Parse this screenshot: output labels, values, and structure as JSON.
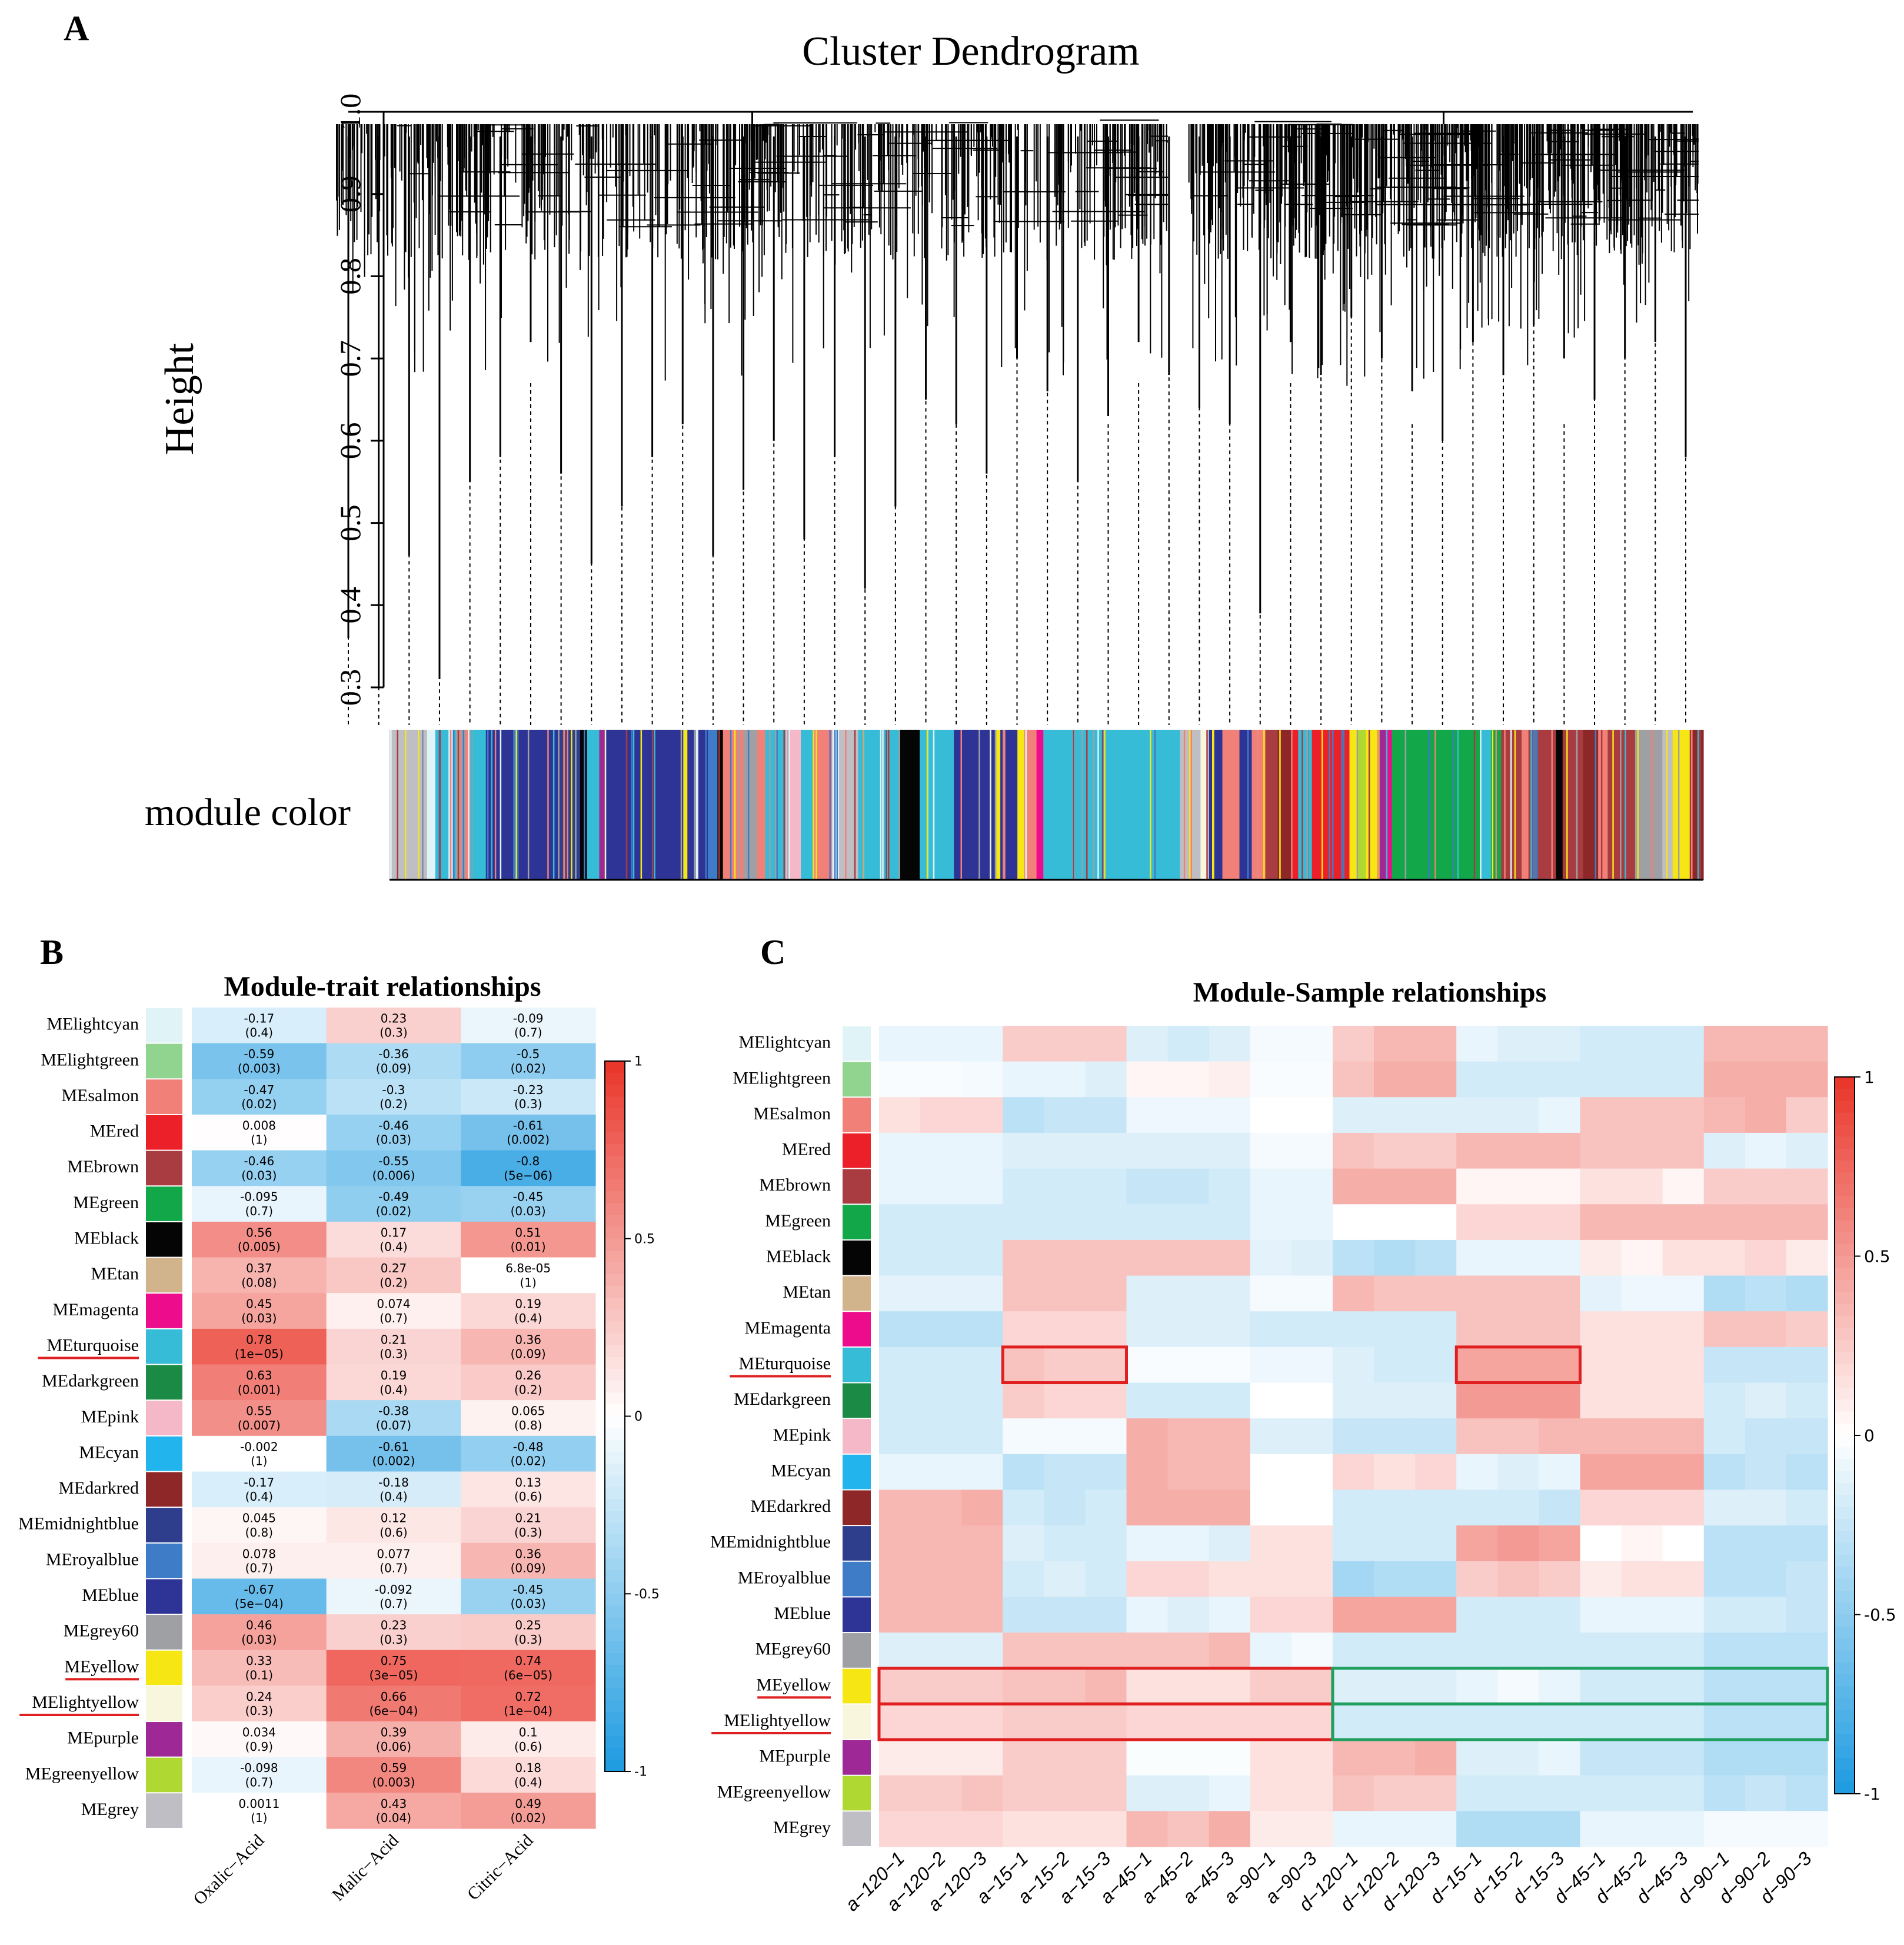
{
  "colors": {
    "lightcyan": "#E0F4F8",
    "lightgreen": "#90D490",
    "salmon": "#F08078",
    "red": "#EC2029",
    "brown": "#A83C40",
    "green": "#12A84A",
    "black": "#050505",
    "tan": "#D2B48C",
    "magenta": "#EC0C8C",
    "turquoise": "#37BCD8",
    "darkgreen": "#1A8A44",
    "pink": "#F4B8C8",
    "cyan": "#22B4EC",
    "darkred": "#8E2828",
    "midnightblue": "#2E3D8C",
    "royalblue": "#3E7CC8",
    "blue": "#2E3496",
    "grey60": "#9EA0A4",
    "yellow": "#F5E614",
    "lightyellow": "#F8F6DC",
    "purple": "#9E2896",
    "greenyellow": "#B0D832",
    "grey": "#BEBEC4",
    "highlight_red": "#E02020",
    "highlight_green": "#20A060",
    "underline": "#E02020"
  },
  "panels": {
    "a": {
      "letter": "A"
    },
    "b": {
      "letter": "B"
    },
    "c": {
      "letter": "C"
    }
  },
  "chart_data": [
    {
      "type": "dendrogram",
      "title": "Cluster Dendrogram",
      "ylabel": "Height",
      "ylim": [
        0.3,
        1.0
      ],
      "yticks": [
        "0.3",
        "0.4",
        "0.5",
        "0.6",
        "0.7",
        "0.8",
        "0.9",
        "1.0"
      ],
      "ytick_values": [
        0.3,
        0.4,
        0.5,
        0.6,
        0.7,
        0.8,
        0.9,
        1.0
      ],
      "colorbar_label": "module color",
      "leaf_min_heights": [
        0.36,
        0.3,
        0.46,
        0.31,
        0.55,
        0.58,
        0.72,
        0.56,
        0.45,
        0.52,
        0.58,
        0.62,
        0.46,
        0.54,
        0.6,
        0.48,
        0.58,
        0.42,
        0.52,
        0.65,
        0.62,
        0.56,
        0.7,
        0.66,
        0.55,
        0.63,
        0.72,
        0.68,
        0.64,
        0.62,
        0.39,
        0.72,
        0.68,
        0.75,
        0.7,
        0.66,
        0.6,
        0.72,
        0.68,
        0.74,
        0.7,
        0.65,
        0.7,
        0.72,
        0.58
      ]
    },
    {
      "type": "heatmap",
      "title": "Module-trait relationships",
      "columns": [
        "Oxalic−Acid",
        "Malic−Acid",
        "Citric−Acid"
      ],
      "rows": [
        "MElightcyan",
        "MElightgreen",
        "MEsalmon",
        "MEred",
        "MEbrown",
        "MEgreen",
        "MEblack",
        "MEtan",
        "MEmagenta",
        "MEturquoise",
        "MEdarkgreen",
        "MEpink",
        "MEcyan",
        "MEdarkred",
        "MEmidnightblue",
        "MEroyalblue",
        "MEblue",
        "MEgrey60",
        "MEyellow",
        "MElightyellow",
        "MEpurple",
        "MEgreenyellow",
        "MEgrey"
      ],
      "values": [
        [
          -0.17,
          0.23,
          -0.09
        ],
        [
          -0.59,
          -0.36,
          -0.5
        ],
        [
          -0.47,
          -0.3,
          -0.23
        ],
        [
          0.008,
          -0.46,
          -0.61
        ],
        [
          -0.46,
          -0.55,
          -0.8
        ],
        [
          -0.095,
          -0.49,
          -0.45
        ],
        [
          0.56,
          0.17,
          0.51
        ],
        [
          0.37,
          0.27,
          6.8e-05
        ],
        [
          0.45,
          0.074,
          0.19
        ],
        [
          0.78,
          0.21,
          0.36
        ],
        [
          0.63,
          0.19,
          0.26
        ],
        [
          0.55,
          -0.38,
          0.065
        ],
        [
          -0.002,
          -0.61,
          -0.48
        ],
        [
          -0.17,
          -0.18,
          0.13
        ],
        [
          0.045,
          0.12,
          0.21
        ],
        [
          0.078,
          0.077,
          0.36
        ],
        [
          -0.67,
          -0.092,
          -0.45
        ],
        [
          0.46,
          0.23,
          0.25
        ],
        [
          0.33,
          0.75,
          0.74
        ],
        [
          0.24,
          0.66,
          0.72
        ],
        [
          0.034,
          0.39,
          0.1
        ],
        [
          -0.098,
          0.59,
          0.18
        ],
        [
          0.0011,
          0.43,
          0.49
        ]
      ],
      "cell_labels": [
        [
          "-0.17",
          "0.23",
          "-0.09"
        ],
        [
          "-0.59",
          "-0.36",
          "-0.5"
        ],
        [
          "-0.47",
          "-0.3",
          "-0.23"
        ],
        [
          "0.008",
          "-0.46",
          "-0.61"
        ],
        [
          "-0.46",
          "-0.55",
          "-0.8"
        ],
        [
          "-0.095",
          "-0.49",
          "-0.45"
        ],
        [
          "0.56",
          "0.17",
          "0.51"
        ],
        [
          "0.37",
          "0.27",
          "6.8e-05"
        ],
        [
          "0.45",
          "0.074",
          "0.19"
        ],
        [
          "0.78",
          "0.21",
          "0.36"
        ],
        [
          "0.63",
          "0.19",
          "0.26"
        ],
        [
          "0.55",
          "-0.38",
          "0.065"
        ],
        [
          "-0.002",
          "-0.61",
          "-0.48"
        ],
        [
          "-0.17",
          "-0.18",
          "0.13"
        ],
        [
          "0.045",
          "0.12",
          "0.21"
        ],
        [
          "0.078",
          "0.077",
          "0.36"
        ],
        [
          "-0.67",
          "-0.092",
          "-0.45"
        ],
        [
          "0.46",
          "0.23",
          "0.25"
        ],
        [
          "0.33",
          "0.75",
          "0.74"
        ],
        [
          "0.24",
          "0.66",
          "0.72"
        ],
        [
          "0.034",
          "0.39",
          "0.1"
        ],
        [
          "-0.098",
          "0.59",
          "0.18"
        ],
        [
          "0.0011",
          "0.43",
          "0.49"
        ]
      ],
      "pvalues": [
        [
          "(0.4)",
          "(0.3)",
          "(0.7)"
        ],
        [
          "(0.003)",
          "(0.09)",
          "(0.02)"
        ],
        [
          "(0.02)",
          "(0.2)",
          "(0.3)"
        ],
        [
          "(1)",
          "(0.03)",
          "(0.002)"
        ],
        [
          "(0.03)",
          "(0.006)",
          "(5e−06)"
        ],
        [
          "(0.7)",
          "(0.02)",
          "(0.03)"
        ],
        [
          "(0.005)",
          "(0.4)",
          "(0.01)"
        ],
        [
          "(0.08)",
          "(0.2)",
          "(1)"
        ],
        [
          "(0.03)",
          "(0.7)",
          "(0.4)"
        ],
        [
          "(1e−05)",
          "(0.3)",
          "(0.09)"
        ],
        [
          "(0.001)",
          "(0.4)",
          "(0.2)"
        ],
        [
          "(0.007)",
          "(0.07)",
          "(0.8)"
        ],
        [
          "(1)",
          "(0.002)",
          "(0.02)"
        ],
        [
          "(0.4)",
          "(0.4)",
          "(0.6)"
        ],
        [
          "(0.8)",
          "(0.6)",
          "(0.3)"
        ],
        [
          "(0.7)",
          "(0.7)",
          "(0.09)"
        ],
        [
          "(5e−04)",
          "(0.7)",
          "(0.03)"
        ],
        [
          "(0.03)",
          "(0.3)",
          "(0.3)"
        ],
        [
          "(0.1)",
          "(3e−05)",
          "(6e−05)"
        ],
        [
          "(0.3)",
          "(6e−04)",
          "(1e−04)"
        ],
        [
          "(0.9)",
          "(0.06)",
          "(0.6)"
        ],
        [
          "(0.7)",
          "(0.003)",
          "(0.4)"
        ],
        [
          "(1)",
          "(0.04)",
          "(0.02)"
        ]
      ],
      "colorbar": {
        "range": [
          -1,
          1
        ],
        "ticks": [
          "1",
          "0.5",
          "0",
          "-0.5",
          "-1"
        ]
      },
      "underlined_rows": [
        "MEturquoise",
        "MEyellow",
        "MElightyellow"
      ]
    },
    {
      "type": "heatmap",
      "title": "Module-Sample relationships",
      "columns": [
        "a−120−1",
        "a−120−2",
        "a−120−3",
        "a−15−1",
        "a−15−2",
        "a−15−3",
        "a−45−1",
        "a−45−2",
        "a−45−3",
        "a−90−1",
        "a−90−3",
        "d−120−1",
        "d−120−2",
        "d−120−3",
        "d−15−1",
        "d−15−2",
        "d−15−3",
        "d−45−1",
        "d−45−2",
        "d−45−3",
        "d−90−1",
        "d−90−2",
        "d−90−3"
      ],
      "rows": [
        "MElightcyan",
        "MElightgreen",
        "MEsalmon",
        "MEred",
        "MEbrown",
        "MEgreen",
        "MEblack",
        "MEtan",
        "MEmagenta",
        "MEturquoise",
        "MEdarkgreen",
        "MEpink",
        "MEcyan",
        "MEdarkred",
        "MEmidnightblue",
        "MEroyalblue",
        "MEblue",
        "MEgrey60",
        "MEyellow",
        "MElightyellow",
        "MEpurple",
        "MEgreenyellow",
        "MEgrey"
      ],
      "values": [
        [
          -0.1,
          -0.1,
          -0.1,
          0.25,
          0.25,
          0.25,
          -0.15,
          -0.2,
          -0.15,
          -0.05,
          -0.05,
          0.25,
          0.35,
          0.35,
          -0.1,
          -0.15,
          -0.15,
          -0.2,
          -0.2,
          -0.2,
          0.35,
          0.35,
          0.35
        ],
        [
          -0.03,
          -0.03,
          -0.05,
          -0.1,
          -0.1,
          -0.15,
          0.05,
          0.05,
          0.08,
          -0.03,
          -0.03,
          0.3,
          0.4,
          0.4,
          -0.2,
          -0.2,
          -0.2,
          -0.2,
          -0.2,
          -0.2,
          0.4,
          0.4,
          0.4
        ],
        [
          0.15,
          0.2,
          0.2,
          -0.3,
          -0.25,
          -0.25,
          -0.08,
          -0.08,
          -0.08,
          0.0,
          0.0,
          -0.15,
          -0.15,
          -0.15,
          -0.15,
          -0.15,
          -0.1,
          0.3,
          0.3,
          0.3,
          0.35,
          0.4,
          0.25
        ],
        [
          -0.1,
          -0.1,
          -0.1,
          -0.15,
          -0.15,
          -0.15,
          -0.15,
          -0.15,
          -0.15,
          -0.05,
          -0.05,
          0.3,
          0.25,
          0.25,
          0.35,
          0.35,
          0.35,
          0.3,
          0.3,
          0.3,
          -0.15,
          -0.1,
          -0.15
        ],
        [
          -0.1,
          -0.1,
          -0.1,
          -0.2,
          -0.2,
          -0.2,
          -0.25,
          -0.25,
          -0.2,
          -0.1,
          -0.1,
          0.4,
          0.4,
          0.4,
          0.05,
          0.05,
          0.05,
          0.15,
          0.15,
          0.05,
          0.25,
          0.25,
          0.25
        ],
        [
          -0.2,
          -0.2,
          -0.2,
          -0.2,
          -0.2,
          -0.2,
          -0.2,
          -0.2,
          -0.2,
          -0.1,
          -0.1,
          0.0,
          0.0,
          0.0,
          0.2,
          0.2,
          0.2,
          0.35,
          0.35,
          0.35,
          0.35,
          0.35,
          0.35
        ],
        [
          -0.2,
          -0.2,
          -0.2,
          0.3,
          0.3,
          0.3,
          0.3,
          0.3,
          0.3,
          -0.12,
          -0.15,
          -0.3,
          -0.35,
          -0.3,
          -0.1,
          -0.1,
          -0.1,
          0.1,
          0.05,
          0.15,
          0.15,
          0.2,
          0.1
        ],
        [
          -0.12,
          -0.12,
          -0.12,
          0.3,
          0.3,
          0.3,
          -0.15,
          -0.15,
          -0.15,
          -0.05,
          -0.05,
          0.35,
          0.3,
          0.3,
          0.3,
          0.3,
          0.3,
          -0.12,
          -0.08,
          -0.08,
          -0.35,
          -0.3,
          -0.35
        ],
        [
          -0.3,
          -0.3,
          -0.3,
          0.2,
          0.2,
          0.2,
          -0.15,
          -0.15,
          -0.15,
          -0.2,
          -0.2,
          -0.2,
          -0.2,
          -0.2,
          0.3,
          0.3,
          0.3,
          0.15,
          0.15,
          0.15,
          0.3,
          0.3,
          0.25
        ],
        [
          -0.2,
          -0.2,
          -0.2,
          0.3,
          0.25,
          0.25,
          -0.03,
          -0.03,
          -0.03,
          -0.08,
          -0.08,
          -0.15,
          -0.2,
          -0.2,
          0.45,
          0.45,
          0.45,
          0.15,
          0.15,
          0.15,
          -0.25,
          -0.25,
          -0.25
        ],
        [
          -0.2,
          -0.2,
          -0.2,
          0.25,
          0.2,
          0.2,
          -0.2,
          -0.2,
          -0.2,
          0.0,
          0.0,
          -0.15,
          -0.15,
          -0.15,
          0.5,
          0.5,
          0.5,
          0.15,
          0.15,
          0.15,
          -0.2,
          -0.15,
          -0.2
        ],
        [
          -0.2,
          -0.2,
          -0.2,
          -0.05,
          -0.05,
          -0.05,
          0.4,
          0.35,
          0.35,
          -0.15,
          -0.15,
          -0.25,
          -0.25,
          -0.25,
          0.3,
          0.3,
          0.35,
          0.35,
          0.35,
          0.35,
          -0.2,
          -0.25,
          -0.25
        ],
        [
          -0.1,
          -0.1,
          -0.1,
          -0.3,
          -0.25,
          -0.25,
          0.4,
          0.35,
          0.35,
          0.0,
          0.0,
          0.2,
          0.15,
          0.2,
          -0.1,
          -0.15,
          -0.1,
          0.45,
          0.45,
          0.45,
          -0.3,
          -0.25,
          -0.3
        ],
        [
          0.35,
          0.35,
          0.4,
          -0.2,
          -0.25,
          -0.2,
          0.4,
          0.4,
          0.4,
          0.0,
          0.0,
          -0.2,
          -0.2,
          -0.2,
          -0.2,
          -0.2,
          -0.25,
          0.2,
          0.2,
          0.2,
          -0.15,
          -0.15,
          -0.2
        ],
        [
          0.35,
          0.35,
          0.35,
          -0.15,
          -0.2,
          -0.2,
          -0.1,
          -0.1,
          -0.15,
          0.15,
          0.15,
          -0.2,
          -0.2,
          -0.2,
          0.45,
          0.5,
          0.45,
          0.0,
          0.05,
          0.0,
          -0.3,
          -0.3,
          -0.3
        ],
        [
          0.35,
          0.35,
          0.35,
          -0.2,
          -0.15,
          -0.2,
          0.2,
          0.2,
          0.15,
          0.15,
          0.15,
          -0.4,
          -0.35,
          -0.35,
          0.25,
          0.3,
          0.25,
          0.1,
          0.15,
          0.15,
          -0.3,
          -0.3,
          -0.25
        ],
        [
          0.35,
          0.35,
          0.35,
          -0.25,
          -0.25,
          -0.25,
          -0.1,
          -0.15,
          -0.1,
          0.2,
          0.2,
          0.45,
          0.45,
          0.45,
          -0.2,
          -0.2,
          -0.2,
          -0.1,
          -0.1,
          -0.1,
          -0.2,
          -0.2,
          -0.25
        ],
        [
          -0.15,
          -0.15,
          -0.15,
          0.3,
          0.3,
          0.3,
          0.3,
          0.3,
          0.35,
          -0.1,
          -0.05,
          -0.2,
          -0.2,
          -0.2,
          -0.2,
          -0.2,
          -0.2,
          -0.2,
          -0.2,
          -0.2,
          -0.3,
          -0.3,
          -0.3
        ],
        [
          0.25,
          0.25,
          0.25,
          0.3,
          0.3,
          0.35,
          0.15,
          0.15,
          0.15,
          0.25,
          0.25,
          -0.15,
          -0.15,
          -0.15,
          -0.1,
          -0.05,
          -0.1,
          -0.2,
          -0.2,
          -0.2,
          -0.3,
          -0.3,
          -0.3
        ],
        [
          0.2,
          0.2,
          0.2,
          0.25,
          0.25,
          0.25,
          0.2,
          0.2,
          0.2,
          0.2,
          0.2,
          -0.2,
          -0.2,
          -0.2,
          -0.2,
          -0.2,
          -0.2,
          -0.2,
          -0.2,
          -0.2,
          -0.3,
          -0.3,
          -0.3
        ],
        [
          0.1,
          0.1,
          0.1,
          0.25,
          0.25,
          0.25,
          -0.02,
          -0.02,
          -0.02,
          0.15,
          0.15,
          0.35,
          0.35,
          0.4,
          -0.15,
          -0.15,
          -0.1,
          -0.25,
          -0.25,
          -0.25,
          -0.35,
          -0.35,
          -0.35
        ],
        [
          0.25,
          0.25,
          0.3,
          0.25,
          0.25,
          0.25,
          -0.15,
          -0.15,
          -0.1,
          0.15,
          0.15,
          0.3,
          0.25,
          0.25,
          -0.2,
          -0.2,
          -0.2,
          -0.2,
          -0.2,
          -0.2,
          -0.3,
          -0.25,
          -0.3
        ],
        [
          0.2,
          0.2,
          0.2,
          0.15,
          0.15,
          0.15,
          0.35,
          0.3,
          0.4,
          0.1,
          0.1,
          -0.1,
          -0.1,
          -0.1,
          -0.35,
          -0.35,
          -0.35,
          -0.1,
          -0.1,
          -0.1,
          -0.05,
          -0.05,
          -0.05
        ]
      ],
      "colorbar": {
        "range": [
          -1,
          1
        ],
        "ticks": [
          "1",
          "0.5",
          "0",
          "-0.5",
          "-1"
        ]
      },
      "underlined_rows": [
        "MEturquoise",
        "MEyellow",
        "MElightyellow"
      ],
      "highlights": [
        {
          "color": "red",
          "row": "MEturquoise",
          "from": "a−15−1",
          "to": "a−15−3"
        },
        {
          "color": "red",
          "row": "MEturquoise",
          "from": "d−15−1",
          "to": "d−15−3"
        },
        {
          "color": "red",
          "row": "MEyellow",
          "from": "a−120−1",
          "to": "a−90−3"
        },
        {
          "color": "red",
          "row": "MElightyellow",
          "from": "a−120−1",
          "to": "a−90−3"
        },
        {
          "color": "green",
          "row": "MEyellow",
          "from": "d−120−1",
          "to": "d−90−3"
        },
        {
          "color": "green",
          "row": "MElightyellow",
          "from": "d−120−1",
          "to": "d−90−3"
        }
      ]
    }
  ]
}
